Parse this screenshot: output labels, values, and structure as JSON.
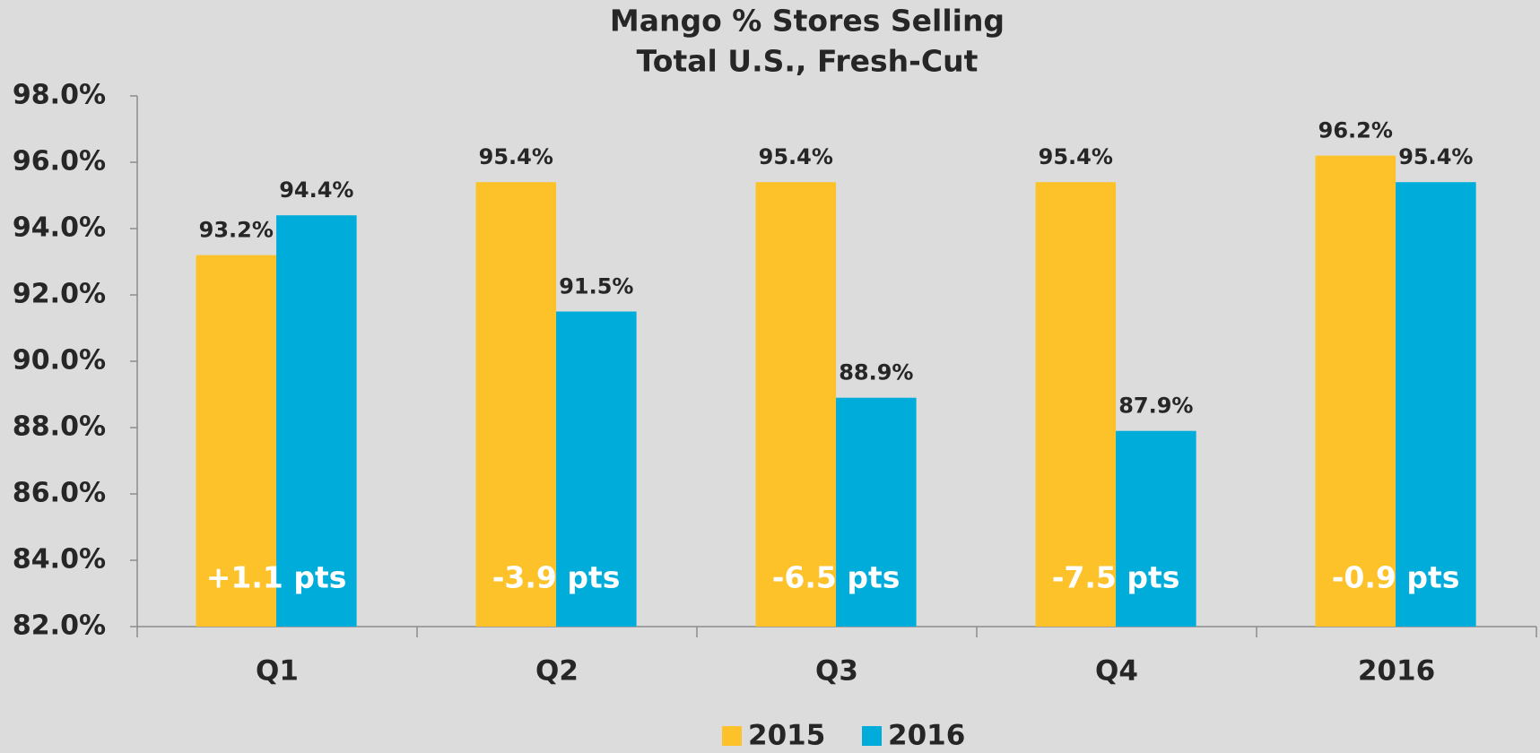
{
  "chart_data": {
    "type": "bar",
    "title": "Mango % Stores Selling",
    "subtitle": "Total U.S., Fresh-Cut",
    "categories": [
      "Q1",
      "Q2",
      "Q3",
      "Q4",
      "2016"
    ],
    "series": [
      {
        "name": "2015",
        "color": "#fdc22a",
        "values": [
          93.2,
          95.4,
          95.4,
          95.4,
          96.2
        ],
        "value_labels": [
          "93.2%",
          "95.4%",
          "95.4%",
          "95.4%",
          "96.2%"
        ]
      },
      {
        "name": "2016",
        "color": "#00acd9",
        "values": [
          94.4,
          91.5,
          88.9,
          87.9,
          95.4
        ],
        "value_labels": [
          "94.4%",
          "91.5%",
          "88.9%",
          "87.9%",
          "95.4%"
        ]
      }
    ],
    "annotations": [
      "+1.1 pts",
      "-3.9 pts",
      "-6.5 pts",
      "-7.5 pts",
      "-0.9 pts"
    ],
    "ylim": [
      82,
      98
    ],
    "yticks": [
      {
        "value": 82,
        "label": "82.0%"
      },
      {
        "value": 84,
        "label": "84.0%"
      },
      {
        "value": 86,
        "label": "86.0%"
      },
      {
        "value": 88,
        "label": "88.0%"
      },
      {
        "value": 90,
        "label": "90.0%"
      },
      {
        "value": 92,
        "label": "92.0%"
      },
      {
        "value": 94,
        "label": "94.0%"
      },
      {
        "value": 96,
        "label": "96.0%"
      },
      {
        "value": 98,
        "label": "98.0%"
      }
    ],
    "legend": "bottom"
  }
}
